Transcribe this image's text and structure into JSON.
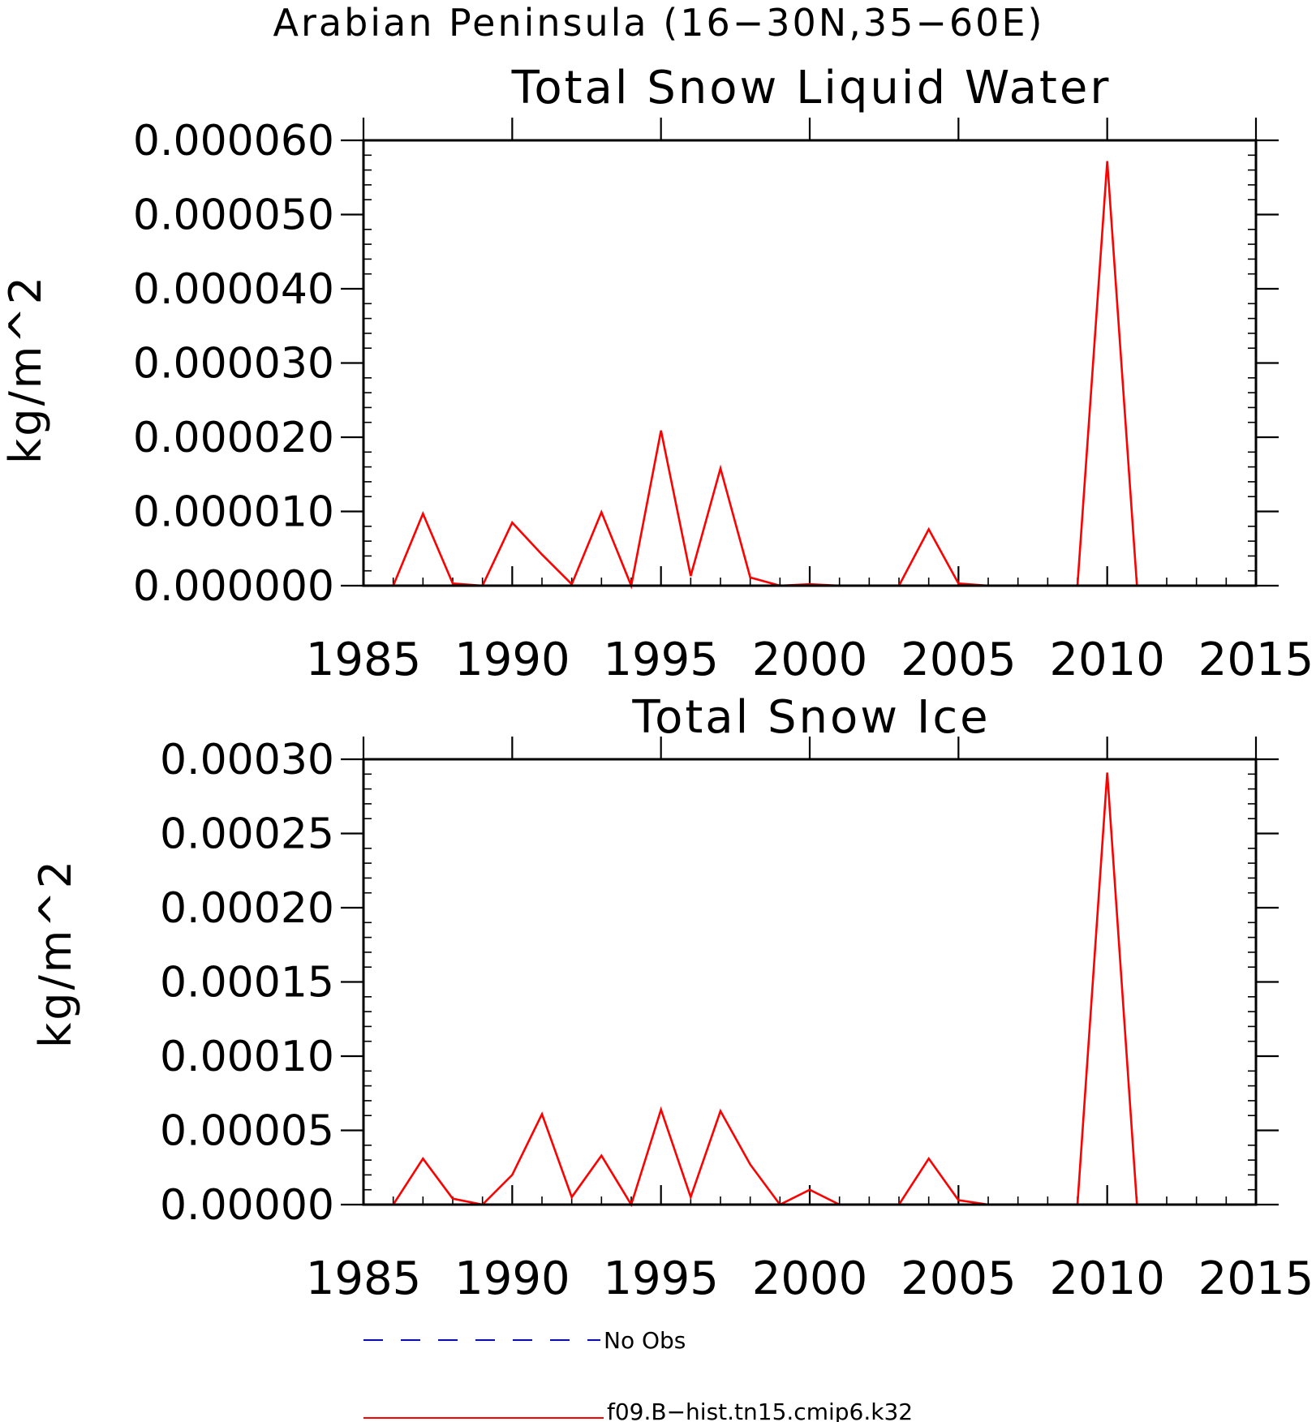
{
  "figure": {
    "suptitle": "Arabian Peninsula (16−30N,35−60E)"
  },
  "colors": {
    "model_series": "#ff0000",
    "obs_series": "#0000ff",
    "axes": "#000000"
  },
  "chart_data": [
    {
      "type": "line",
      "title": "Total Snow Liquid Water",
      "ylabel": "kg/m^2",
      "xlabel": "",
      "xlim": [
        1985,
        2015
      ],
      "ylim": [
        0,
        6e-05
      ],
      "xticks": [
        1985,
        1990,
        1995,
        2000,
        2005,
        2010,
        2015
      ],
      "xtick_labels": [
        "1985",
        "1990",
        "1995",
        "2000",
        "2005",
        "2010",
        "2015"
      ],
      "yticks": [
        0,
        1e-05,
        2e-05,
        3e-05,
        4e-05,
        5e-05,
        6e-05
      ],
      "ytick_labels": [
        "0.000000",
        "0.000010",
        "0.000020",
        "0.000030",
        "0.000040",
        "0.000050",
        "0.000060"
      ],
      "grid": false,
      "series": [
        {
          "name": "f09.B−hist.tn15.cmip6.k32",
          "color": "#ff0000",
          "x": [
            1985,
            1986,
            1987,
            1988,
            1989,
            1990,
            1991,
            1992,
            1993,
            1994,
            1995,
            1996,
            1997,
            1998,
            1999,
            2000,
            2001,
            2002,
            2003,
            2004,
            2005,
            2006,
            2007,
            2008,
            2009,
            2010,
            2011,
            2012,
            2013,
            2014
          ],
          "y": [
            0,
            0,
            9.7e-06,
            3e-07,
            0,
            8.5e-06,
            4.2e-06,
            2e-07,
            9.9e-06,
            0,
            2.09e-05,
            1.3e-06,
            1.58e-05,
            1.1e-06,
            0,
            2e-07,
            0,
            0,
            0,
            7.6e-06,
            3e-07,
            0,
            0,
            0,
            0,
            5.72e-05,
            0,
            0,
            0,
            0
          ]
        }
      ]
    },
    {
      "type": "line",
      "title": "Total Snow Ice",
      "ylabel": "kg/m^2",
      "xlabel": "",
      "xlim": [
        1985,
        2015
      ],
      "ylim": [
        0,
        0.0003
      ],
      "xticks": [
        1985,
        1990,
        1995,
        2000,
        2005,
        2010,
        2015
      ],
      "xtick_labels": [
        "1985",
        "1990",
        "1995",
        "2000",
        "2005",
        "2010",
        "2015"
      ],
      "yticks": [
        0,
        5e-05,
        0.0001,
        0.00015,
        0.0002,
        0.00025,
        0.0003
      ],
      "ytick_labels": [
        "0.00000",
        "0.00005",
        "0.00010",
        "0.00015",
        "0.00020",
        "0.00025",
        "0.00030"
      ],
      "grid": false,
      "series": [
        {
          "name": "f09.B−hist.tn15.cmip6.k32",
          "color": "#ff0000",
          "x": [
            1985,
            1986,
            1987,
            1988,
            1989,
            1990,
            1991,
            1992,
            1993,
            1994,
            1995,
            1996,
            1997,
            1998,
            1999,
            2000,
            2001,
            2002,
            2003,
            2004,
            2005,
            2006,
            2007,
            2008,
            2009,
            2010,
            2011,
            2012,
            2013,
            2014
          ],
          "y": [
            0,
            0,
            3.1e-05,
            4e-06,
            0,
            2e-05,
            6.1e-05,
            5e-06,
            3.3e-05,
            0,
            6.4e-05,
            5e-06,
            6.3e-05,
            2.7e-05,
            0,
            1e-05,
            0,
            0,
            0,
            3.1e-05,
            3e-06,
            0,
            0,
            0,
            0,
            0.000291,
            0,
            0,
            0,
            0
          ]
        }
      ]
    }
  ],
  "legend": {
    "placement": "bottom-left",
    "entries": [
      {
        "label": "No Obs",
        "color": "#0000ff",
        "style": "dashed"
      },
      {
        "label": "f09.B−hist.tn15.cmip6.k32",
        "color": "#ff0000",
        "style": "solid"
      }
    ]
  }
}
